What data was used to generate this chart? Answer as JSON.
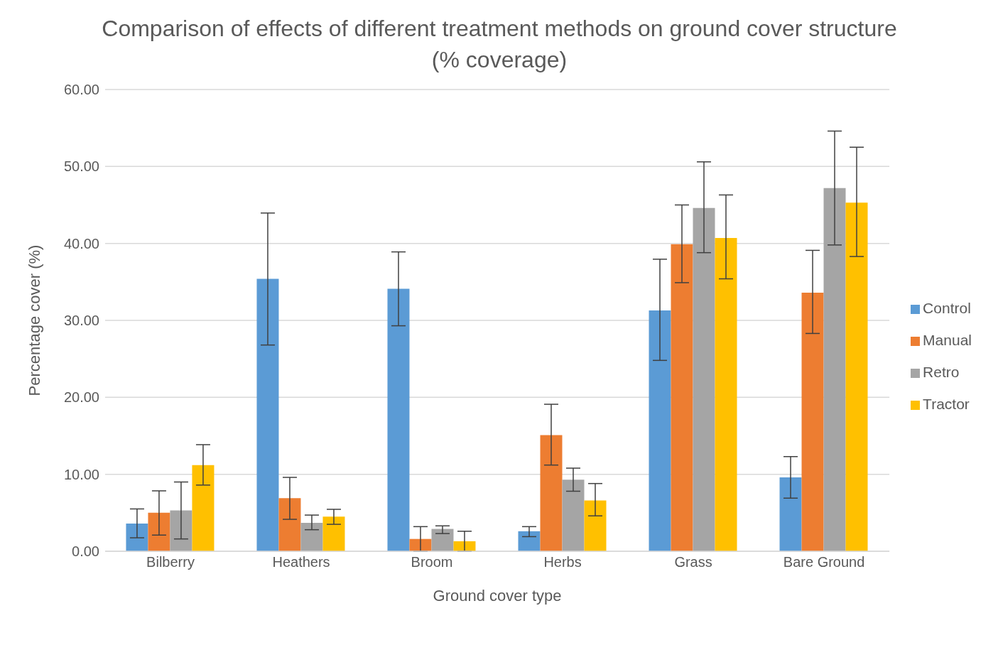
{
  "chart_data": {
    "type": "bar",
    "title": "Comparison of effects of different treatment methods on ground cover structure (% coverage)",
    "xlabel": "Ground cover type",
    "ylabel": "Percentage cover (%)",
    "categories": [
      "Bilberry",
      "Heathers",
      "Broom",
      "Herbs",
      "Grass",
      "Bare Ground"
    ],
    "series": [
      {
        "name": "Control",
        "color": "#5b9bd5",
        "values": [
          3.6,
          35.4,
          34.1,
          2.6,
          31.3,
          9.6
        ],
        "errors": [
          [
            1.75,
            5.5
          ],
          [
            26.8,
            43.95
          ],
          [
            29.3,
            38.9
          ],
          [
            1.9,
            3.2
          ],
          [
            24.8,
            37.95
          ],
          [
            6.9,
            12.3
          ]
        ]
      },
      {
        "name": "Manual",
        "color": "#ed7d31",
        "values": [
          5.0,
          6.9,
          1.6,
          15.1,
          39.9,
          33.6
        ],
        "errors": [
          [
            2.1,
            7.85
          ],
          [
            4.15,
            9.6
          ],
          [
            0,
            3.2
          ],
          [
            11.2,
            19.1
          ],
          [
            34.9,
            45.0
          ],
          [
            28.3,
            39.1
          ]
        ]
      },
      {
        "name": "Retro",
        "color": "#a5a5a5",
        "values": [
          5.3,
          3.7,
          2.9,
          9.3,
          44.6,
          47.2
        ],
        "errors": [
          [
            1.6,
            9.0
          ],
          [
            2.8,
            4.7
          ],
          [
            2.3,
            3.3
          ],
          [
            7.8,
            10.8
          ],
          [
            38.8,
            50.6
          ],
          [
            39.8,
            54.6
          ]
        ]
      },
      {
        "name": "Tractor",
        "color": "#ffc000",
        "values": [
          11.2,
          4.5,
          1.3,
          6.6,
          40.7,
          45.3
        ],
        "errors": [
          [
            8.6,
            13.85
          ],
          [
            3.5,
            5.45
          ],
          [
            0,
            2.6
          ],
          [
            4.6,
            8.8
          ],
          [
            35.4,
            46.3
          ],
          [
            38.3,
            52.5
          ]
        ]
      }
    ],
    "ylim": [
      0,
      60
    ],
    "yticks": [
      {
        "value": 0,
        "label": "0.00"
      },
      {
        "value": 10,
        "label": "10.00"
      },
      {
        "value": 20,
        "label": "20.00"
      },
      {
        "value": 30,
        "label": "30.00"
      },
      {
        "value": 40,
        "label": "40.00"
      },
      {
        "value": 50,
        "label": "50.00"
      },
      {
        "value": 60,
        "label": "60.00"
      }
    ],
    "grid": "y",
    "legend": "right"
  }
}
